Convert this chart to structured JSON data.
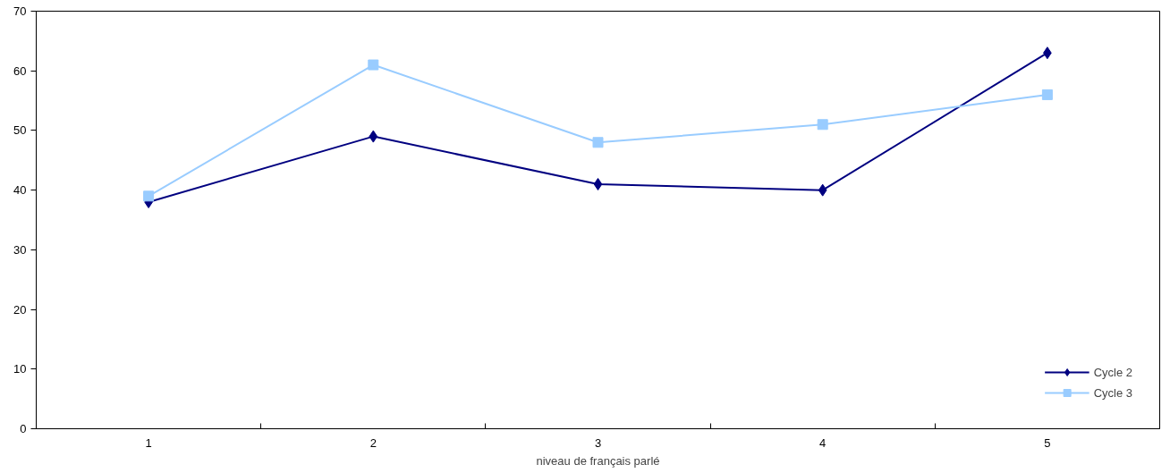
{
  "chart_data": {
    "type": "line",
    "xlabel": "niveau de français parlé",
    "categories": [
      "1",
      "2",
      "3",
      "4",
      "5"
    ],
    "series": [
      {
        "name": "Cycle 2",
        "color": "#000080",
        "marker": "diamond",
        "values": [
          38,
          49,
          41,
          40,
          63
        ]
      },
      {
        "name": "Cycle 3",
        "color": "#99ccff",
        "marker": "square",
        "values": [
          39,
          61,
          48,
          51,
          56
        ]
      }
    ],
    "ylim": [
      0,
      70
    ],
    "yticks": [
      0,
      10,
      20,
      30,
      40,
      50,
      60,
      70
    ],
    "grid": false,
    "legend": "bottom right",
    "line_style": "solid"
  }
}
